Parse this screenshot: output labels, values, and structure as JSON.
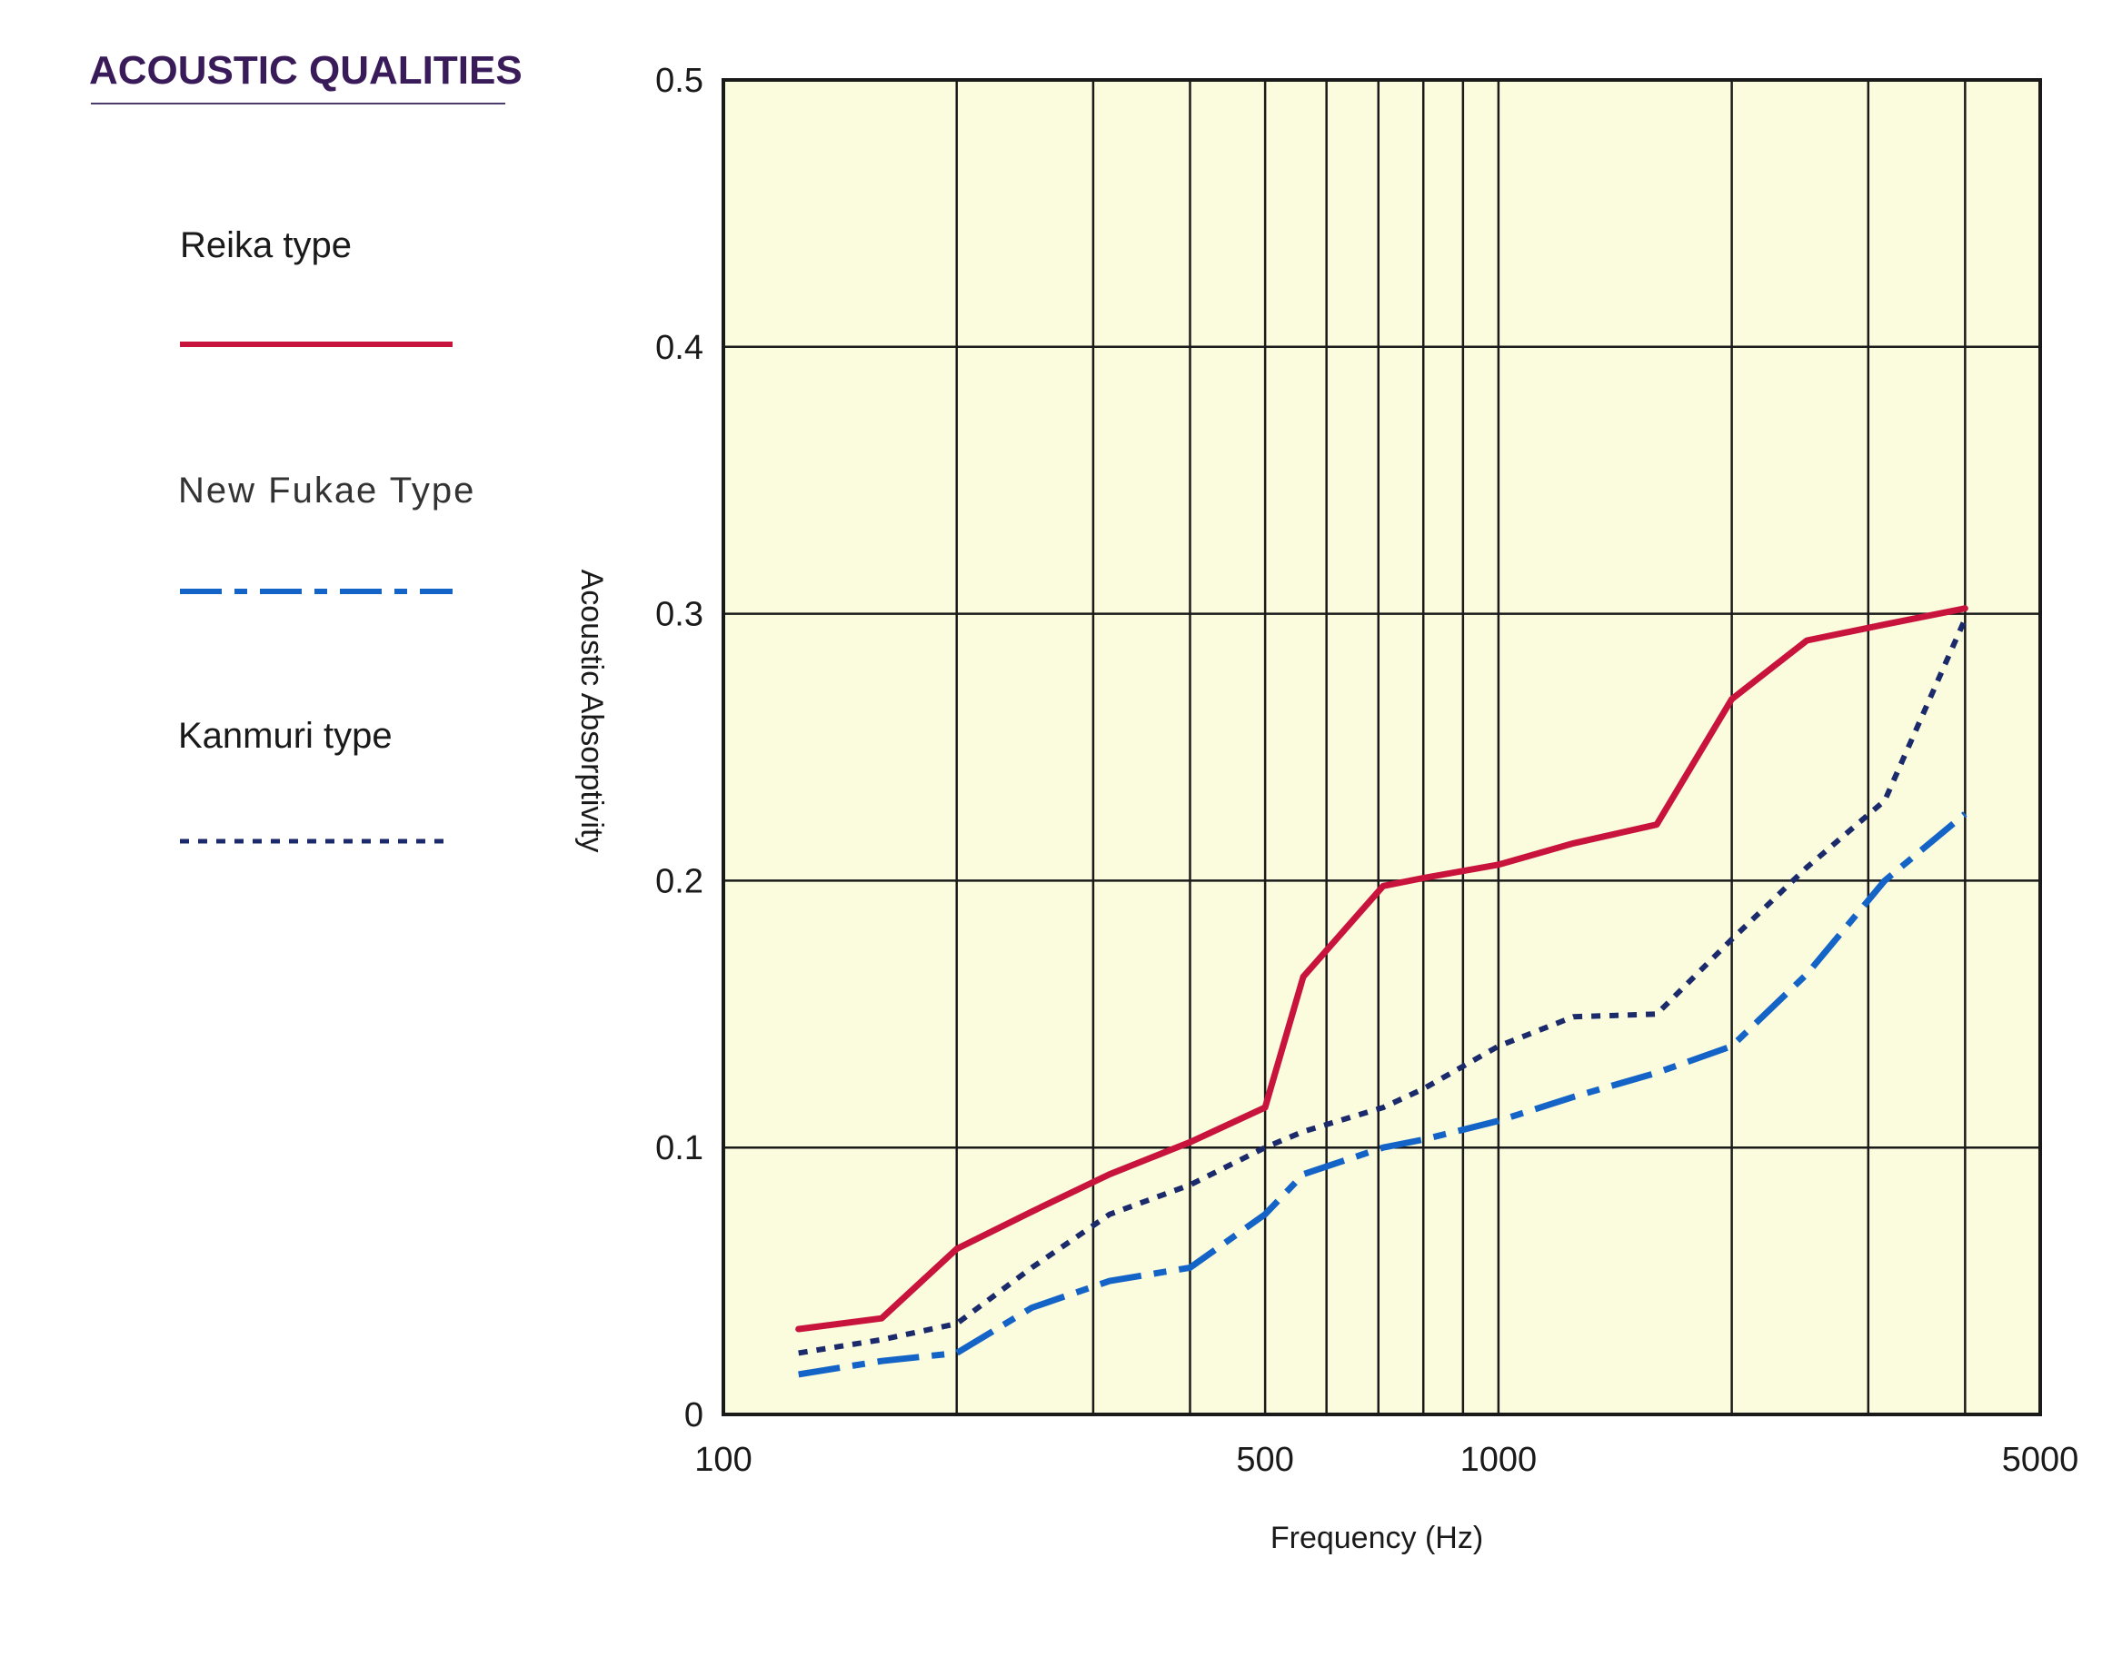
{
  "chart_data": {
    "type": "line",
    "title": "ACOUSTIC QUALITIES",
    "xlabel": "Frequency (Hz)",
    "ylabel": "Acoustic Absorptivity",
    "x_scale": "log",
    "xlim": [
      100,
      5000
    ],
    "ylim": [
      0,
      0.5
    ],
    "x_ticks": [
      100,
      500,
      1000,
      5000
    ],
    "x_tick_labels": [
      "100",
      "500",
      "1000",
      "5000"
    ],
    "y_ticks": [
      0,
      0.1,
      0.2,
      0.3,
      0.4,
      0.5
    ],
    "y_tick_labels": [
      "0",
      "0.1",
      "0.2",
      "0.3",
      "0.4",
      "0.5"
    ],
    "x_gridlines": [
      200,
      300,
      400,
      500,
      600,
      700,
      800,
      900,
      1000,
      2000,
      3000,
      4000
    ],
    "grid": true,
    "background_color": "#fbfbde",
    "legend_position": "left",
    "series": [
      {
        "name": "Reika type",
        "style": "solid",
        "color": "#c8143c",
        "x": [
          125,
          160,
          200,
          250,
          315,
          400,
          500,
          560,
          710,
          800,
          1000,
          1250,
          1600,
          2000,
          2500,
          3150,
          4000
        ],
        "y": [
          0.032,
          0.036,
          0.062,
          0.076,
          0.09,
          0.102,
          0.115,
          0.164,
          0.198,
          0.201,
          0.206,
          0.214,
          0.221,
          0.268,
          0.29,
          0.296,
          0.302
        ]
      },
      {
        "name": "New Fukae Type",
        "style": "dash-dot",
        "color": "#1464c8",
        "x": [
          125,
          160,
          200,
          250,
          315,
          400,
          500,
          560,
          710,
          800,
          1000,
          1250,
          1600,
          2000,
          2500,
          3150,
          4000
        ],
        "y": [
          0.015,
          0.02,
          0.023,
          0.04,
          0.05,
          0.055,
          0.075,
          0.09,
          0.1,
          0.103,
          0.11,
          0.119,
          0.128,
          0.138,
          0.165,
          0.2,
          0.225
        ]
      },
      {
        "name": "Kanmuri type",
        "style": "dotted",
        "color": "#1b2a6b",
        "x": [
          125,
          160,
          200,
          250,
          315,
          400,
          500,
          560,
          710,
          800,
          1000,
          1250,
          1600,
          2000,
          2500,
          3150,
          4000
        ],
        "y": [
          0.023,
          0.028,
          0.034,
          0.055,
          0.075,
          0.086,
          0.1,
          0.106,
          0.115,
          0.122,
          0.138,
          0.149,
          0.15,
          0.178,
          0.205,
          0.23,
          0.298
        ]
      }
    ]
  }
}
